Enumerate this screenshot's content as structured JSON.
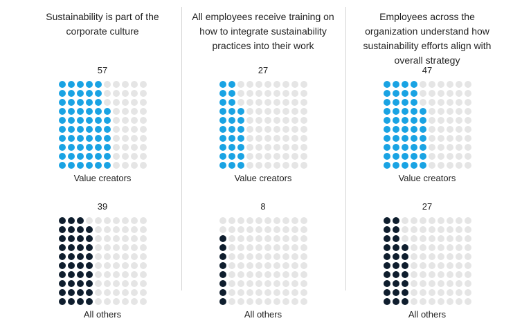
{
  "chart_data": {
    "type": "waffle",
    "colors": {
      "value_creators": "#1aa3e3",
      "all_others": "#0f1e2e",
      "empty": "#e5e5e5"
    },
    "panels": [
      {
        "title": "Sustainability is part of the corporate culture",
        "series": [
          {
            "name": "Value creators",
            "value": 57
          },
          {
            "name": "All others",
            "value": 39
          }
        ]
      },
      {
        "title": "All employees receive training on how to integrate sustainability practices into their work",
        "series": [
          {
            "name": "Value creators",
            "value": 27
          },
          {
            "name": "All others",
            "value": 8
          }
        ]
      },
      {
        "title": "Employees across the organization understand how sustainability efforts align with overall strategy",
        "series": [
          {
            "name": "Value creators",
            "value": 47
          },
          {
            "name": "All others",
            "value": 27
          }
        ]
      }
    ]
  }
}
